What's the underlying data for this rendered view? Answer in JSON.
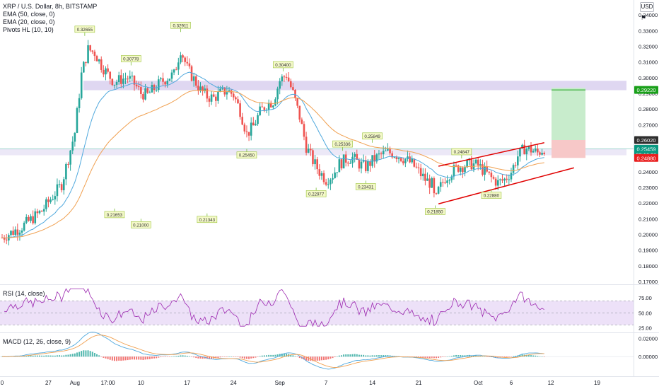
{
  "header": {
    "symbol": "XRP / U.S. Dollar, 8h, BITSTAMP",
    "indicators": [
      "EMA (50, close, 0)",
      "EMA (20, close, 0)",
      "Pivots HL (10, 10)"
    ],
    "currency": "USD"
  },
  "rsi_title": "RSI (14, close)",
  "macd_title": "MACD (12, 26, close, 9)",
  "colors": {
    "up": "#26a69a",
    "down": "#ef5350",
    "ema20": "#4fa8dd",
    "ema50": "#f0a050",
    "zone": "#c9bde8",
    "rsi_line": "#9c27b0",
    "rsi_band": "#ede1f8",
    "channel": "#e00000",
    "target": "#c8eccc",
    "stop": "#f7c8c8",
    "target_badge": "#1aa01a",
    "stop_badge": "#e91e1e",
    "price_badge": "#089981",
    "last_badge": "#2e2e2e"
  },
  "chart_data": [
    {
      "type": "candlestick",
      "title": "XRP / U.S. Dollar, 8h, BITSTAMP",
      "y_ticks": [
        "0.34000",
        "0.33000",
        "0.32000",
        "0.31000",
        "0.30000",
        "0.29000",
        "0.28000",
        "0.27000",
        "0.26000",
        "0.25000",
        "0.24000",
        "0.23000",
        "0.22000",
        "0.21000",
        "0.20000",
        "0.19000",
        "0.18000",
        "0.17000"
      ],
      "ylim": [
        0.17,
        0.345
      ],
      "x_labels": [
        "0",
        "27",
        "Aug",
        "17:00",
        "10",
        "17",
        "24",
        "Sep",
        "7",
        "14",
        "21",
        "Oct",
        "6",
        "12",
        "19"
      ],
      "x_label_positions_days": [
        0,
        7,
        11,
        16,
        21,
        28,
        35,
        42,
        49,
        56,
        63,
        72,
        77,
        83,
        90
      ],
      "close_points": [
        [
          0,
          0.198
        ],
        [
          3,
          0.205
        ],
        [
          6,
          0.215
        ],
        [
          9,
          0.232
        ],
        [
          11,
          0.265
        ],
        [
          12,
          0.302
        ],
        [
          13,
          0.318
        ],
        [
          14,
          0.316
        ],
        [
          15,
          0.308
        ],
        [
          16,
          0.302
        ],
        [
          17,
          0.297
        ],
        [
          18,
          0.299
        ],
        [
          19,
          0.3
        ],
        [
          20,
          0.296
        ],
        [
          21,
          0.29
        ],
        [
          22,
          0.289
        ],
        [
          23,
          0.293
        ],
        [
          24,
          0.297
        ],
        [
          25,
          0.3
        ],
        [
          26,
          0.302
        ],
        [
          27,
          0.318
        ],
        [
          28,
          0.306
        ],
        [
          29,
          0.299
        ],
        [
          30,
          0.292
        ],
        [
          31,
          0.288
        ],
        [
          32,
          0.287
        ],
        [
          33,
          0.29
        ],
        [
          34,
          0.292
        ],
        [
          35,
          0.289
        ],
        [
          36,
          0.279
        ],
        [
          37,
          0.264
        ],
        [
          38,
          0.269
        ],
        [
          39,
          0.278
        ],
        [
          40,
          0.283
        ],
        [
          41,
          0.285
        ],
        [
          42,
          0.298
        ],
        [
          43,
          0.302
        ],
        [
          44,
          0.29
        ],
        [
          45,
          0.275
        ],
        [
          46,
          0.256
        ],
        [
          47,
          0.247
        ],
        [
          48,
          0.24
        ],
        [
          49,
          0.235
        ],
        [
          50,
          0.238
        ],
        [
          51,
          0.245
        ],
        [
          52,
          0.248
        ],
        [
          53,
          0.249
        ],
        [
          54,
          0.245
        ],
        [
          55,
          0.243
        ],
        [
          56,
          0.247
        ],
        [
          57,
          0.25
        ],
        [
          58,
          0.252
        ],
        [
          59,
          0.252
        ],
        [
          60,
          0.25
        ],
        [
          61,
          0.248
        ],
        [
          62,
          0.245
        ],
        [
          63,
          0.24
        ],
        [
          64,
          0.235
        ],
        [
          65,
          0.232
        ],
        [
          65.5,
          0.22
        ],
        [
          66,
          0.228
        ],
        [
          67,
          0.236
        ],
        [
          68,
          0.24
        ],
        [
          69,
          0.243
        ],
        [
          70,
          0.244
        ],
        [
          71,
          0.245
        ],
        [
          72,
          0.244
        ],
        [
          73,
          0.24
        ],
        [
          74,
          0.236
        ],
        [
          75,
          0.233
        ],
        [
          76,
          0.235
        ],
        [
          77,
          0.24
        ],
        [
          78,
          0.25
        ],
        [
          79,
          0.255
        ],
        [
          80,
          0.254
        ],
        [
          81,
          0.252
        ],
        [
          82,
          0.255
        ]
      ],
      "pivot_labels": [
        {
          "text": "0.32655",
          "day": 12.5,
          "price": 0.3266,
          "pos": "high"
        },
        {
          "text": "0.32911",
          "day": 27,
          "price": 0.3291,
          "pos": "high"
        },
        {
          "text": "0.30778",
          "day": 19.5,
          "price": 0.3078,
          "pos": "high"
        },
        {
          "text": "0.30400",
          "day": 42.5,
          "price": 0.304,
          "pos": "high"
        },
        {
          "text": "0.25336",
          "day": 51.5,
          "price": 0.2534,
          "pos": "high"
        },
        {
          "text": "0.25849",
          "day": 56,
          "price": 0.2585,
          "pos": "high"
        },
        {
          "text": "0.24847",
          "day": 69.5,
          "price": 0.2485,
          "pos": "high"
        },
        {
          "text": "0.21653",
          "day": 17,
          "price": 0.2165,
          "pos": "low"
        },
        {
          "text": "0.21000",
          "day": 21,
          "price": 0.21,
          "pos": "low"
        },
        {
          "text": "0.21343",
          "day": 31,
          "price": 0.2134,
          "pos": "low"
        },
        {
          "text": "0.25450",
          "day": 37,
          "price": 0.2545,
          "pos": "low"
        },
        {
          "text": "0.22977",
          "day": 47.5,
          "price": 0.2298,
          "pos": "low"
        },
        {
          "text": "0.23431",
          "day": 55,
          "price": 0.2343,
          "pos": "low"
        },
        {
          "text": "0.21850",
          "day": 65.5,
          "price": 0.2185,
          "pos": "low"
        },
        {
          "text": "0.22880",
          "day": 74,
          "price": 0.2288,
          "pos": "low"
        }
      ],
      "price_badges": [
        {
          "text": "0.29220",
          "price": 0.2922,
          "kind": "target"
        },
        {
          "text": "0.26020",
          "price": 0.2602,
          "kind": "last"
        },
        {
          "text": "0.25459",
          "price": 0.2546,
          "kind": "price"
        },
        {
          "text": "03:16:31",
          "price": 0.2509,
          "kind": "price"
        },
        {
          "text": "0.24880",
          "price": 0.2488,
          "kind": "stop"
        }
      ]
    },
    {
      "type": "line",
      "title": "RSI (14, close)",
      "y_ticks": [
        "75.00",
        "50.00",
        "25.00"
      ],
      "ylim": [
        20,
        95
      ],
      "band": [
        30,
        70
      ]
    },
    {
      "type": "bar",
      "title": "MACD (12, 26, close, 9)",
      "y_ticks": [
        "0.02000",
        "0.00000"
      ],
      "ylim": [
        -0.02,
        0.025
      ]
    }
  ]
}
